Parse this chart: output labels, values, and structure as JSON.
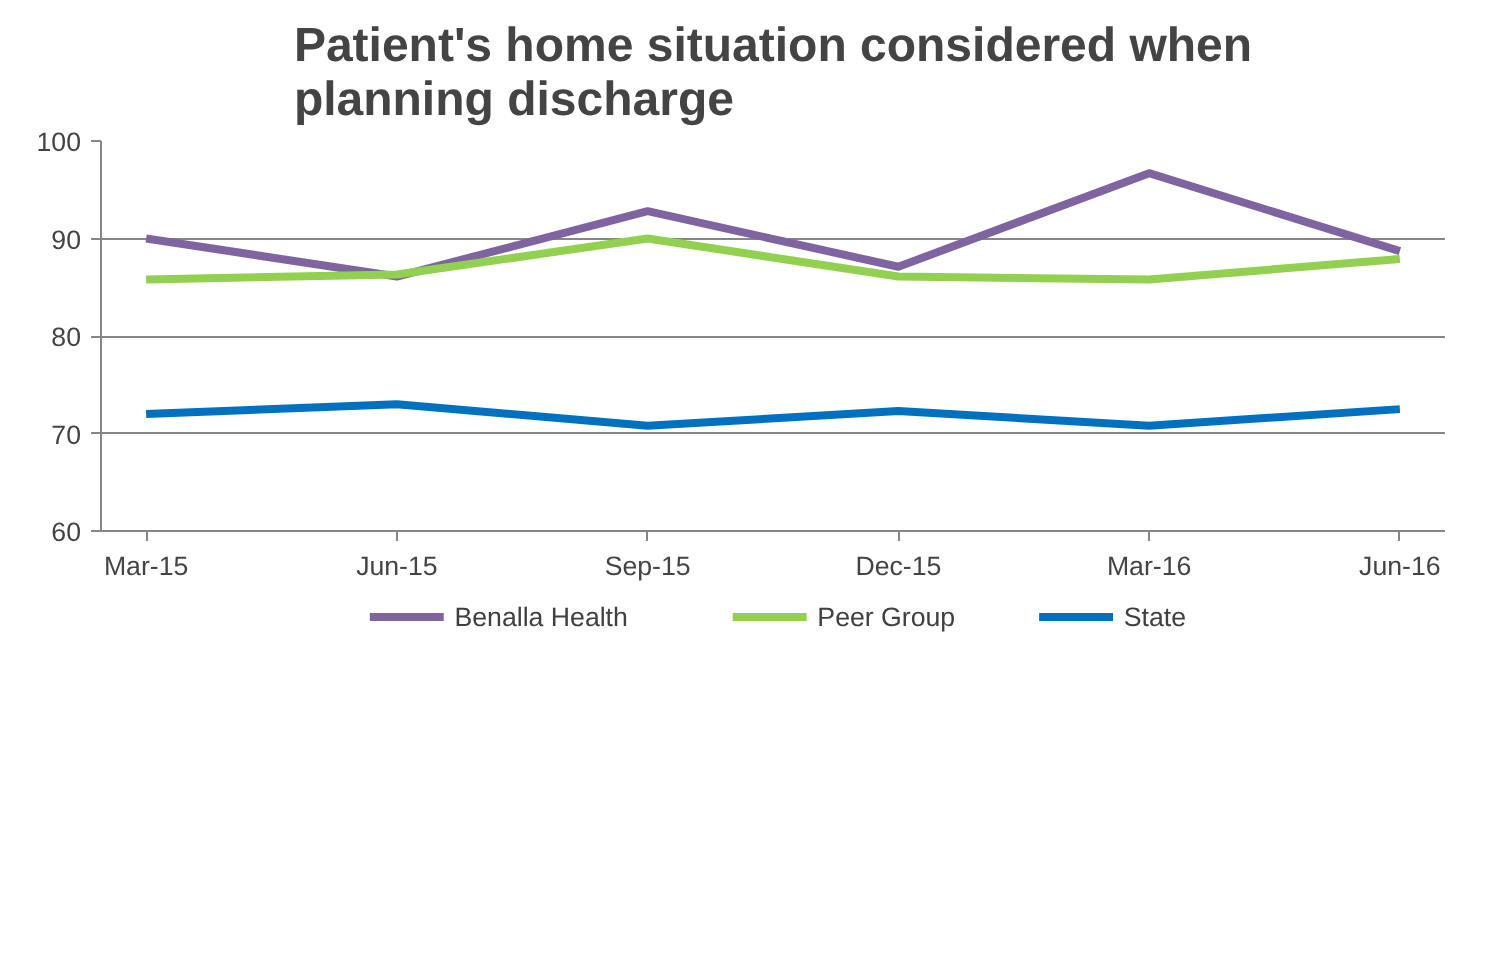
{
  "chart_data": {
    "type": "line",
    "title": "Patient's home situation considered when\nplanning discharge",
    "categories": [
      "Mar-15",
      "Jun-15",
      "Sep-15",
      "Dec-15",
      "Mar-16",
      "Jun-16"
    ],
    "series": [
      {
        "name": "Benalla Health",
        "color": "#8064a2",
        "values": [
          90,
          86.1,
          92.8,
          87.1,
          96.7,
          88.7
        ]
      },
      {
        "name": "Peer Group",
        "color": "#92d050",
        "values": [
          85.8,
          86.3,
          90,
          86.1,
          85.8,
          87.9
        ]
      },
      {
        "name": "State",
        "color": "#0070c0",
        "values": [
          72,
          73,
          70.8,
          72.3,
          70.8,
          72.5
        ]
      }
    ],
    "ylim": [
      60,
      100
    ],
    "yticks": [
      60,
      70,
      80,
      90,
      100
    ],
    "grid": "y",
    "legend": "bottom",
    "marker": "none",
    "line_style": "solid"
  }
}
